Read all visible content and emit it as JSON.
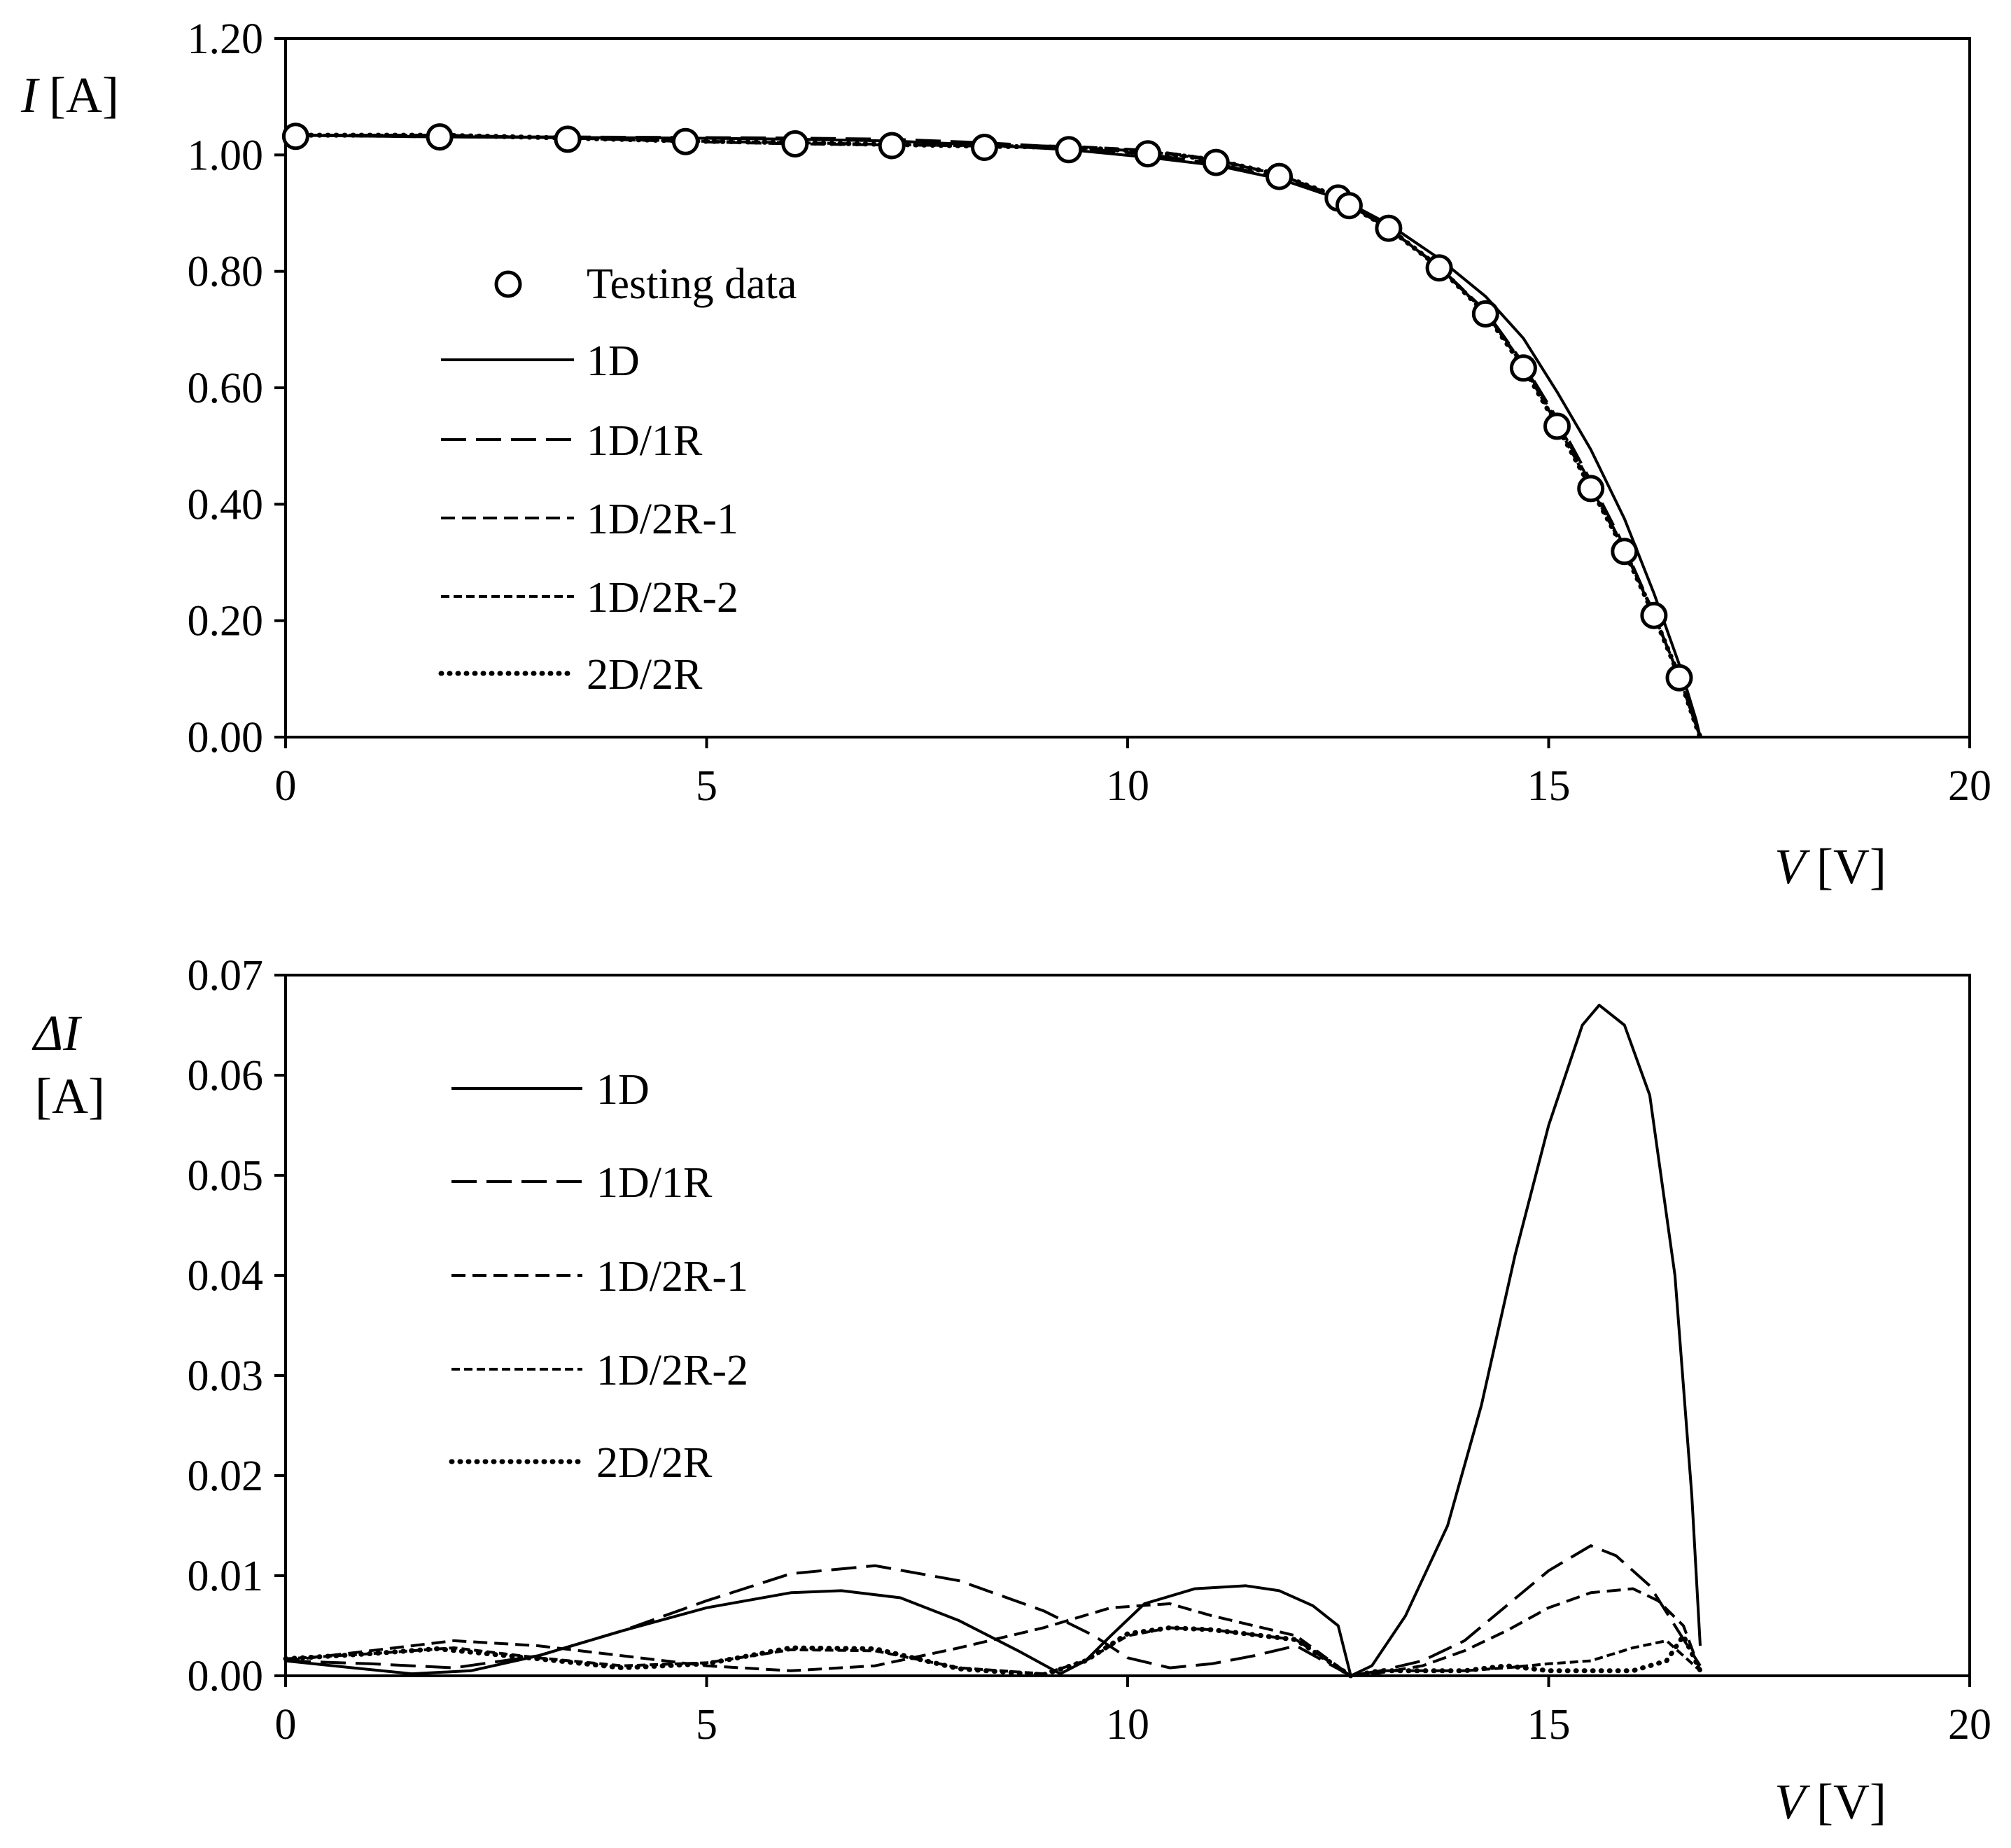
{
  "chart_data": [
    {
      "type": "line",
      "xlabel_var": "V",
      "xlabel_unit": "[V]",
      "ylabel_var": "I",
      "ylabel_unit": "[A]",
      "xlim": [
        0,
        20
      ],
      "ylim": [
        0,
        1.2
      ],
      "xticks": [
        "0",
        "5",
        "10",
        "15",
        "20"
      ],
      "yticks": [
        "0.00",
        "0.20",
        "0.40",
        "0.60",
        "0.80",
        "1.00",
        "1.20"
      ],
      "legend_position": "left",
      "legend": [
        "Testing data",
        "1D",
        "1D/1R",
        "1D/2R-1",
        "1D/2R-2",
        "2D/2R"
      ],
      "testing_data": {
        "name": "Testing data",
        "x": [
          0.12,
          1.83,
          3.35,
          4.75,
          6.05,
          7.2,
          8.3,
          9.3,
          10.24,
          11.05,
          11.8,
          12.5,
          12.63,
          13.1,
          13.7,
          14.25,
          14.7,
          15.1,
          15.5,
          15.9,
          16.25,
          16.55
        ],
        "y": [
          1.032,
          1.031,
          1.027,
          1.023,
          1.019,
          1.016,
          1.013,
          1.009,
          1.002,
          0.987,
          0.963,
          0.926,
          0.913,
          0.874,
          0.806,
          0.727,
          0.634,
          0.534,
          0.427,
          0.319,
          0.209,
          0.102
        ]
      },
      "series": [
        {
          "name": "1D",
          "x": [
            0.0,
            1.83,
            3.35,
            4.75,
            6.05,
            7.2,
            8.3,
            9.3,
            10.24,
            11.05,
            11.8,
            12.5,
            12.63,
            13.1,
            13.7,
            14.25,
            14.7,
            15.1,
            15.5,
            15.9,
            16.25,
            16.55,
            16.75,
            16.8
          ],
          "y": [
            1.034,
            1.031,
            1.03,
            1.029,
            1.027,
            1.024,
            1.017,
            1.009,
            0.996,
            0.982,
            0.959,
            0.925,
            0.917,
            0.881,
            0.822,
            0.757,
            0.685,
            0.593,
            0.494,
            0.375,
            0.247,
            0.125,
            0.03,
            0.0
          ]
        },
        {
          "name": "1D/1R",
          "x": [
            0.0,
            1.83,
            3.35,
            4.75,
            6.05,
            7.2,
            8.3,
            9.3,
            10.24,
            11.05,
            11.8,
            12.5,
            12.63,
            13.1,
            13.7,
            14.25,
            14.7,
            15.1,
            15.5,
            15.9,
            16.25,
            16.55,
            16.75,
            16.8
          ],
          "y": [
            1.034,
            1.031,
            1.031,
            1.03,
            1.029,
            1.027,
            1.021,
            1.013,
            1.001,
            0.985,
            0.961,
            0.924,
            0.915,
            0.874,
            0.808,
            0.732,
            0.642,
            0.547,
            0.44,
            0.327,
            0.212,
            0.104,
            0.02,
            0.0
          ]
        },
        {
          "name": "1D/2R-1",
          "x": [
            0.0,
            1.83,
            3.35,
            4.75,
            6.05,
            7.2,
            8.3,
            9.3,
            10.24,
            11.05,
            11.8,
            12.5,
            12.63,
            13.1,
            13.7,
            14.25,
            14.7,
            15.1,
            15.5,
            15.9,
            16.25,
            16.55,
            16.75,
            16.8
          ],
          "y": [
            1.034,
            1.034,
            1.029,
            1.023,
            1.019,
            1.017,
            1.016,
            1.015,
            1.008,
            0.992,
            0.966,
            0.927,
            0.913,
            0.874,
            0.807,
            0.73,
            0.64,
            0.542,
            0.435,
            0.323,
            0.211,
            0.104,
            0.02,
            0.0
          ]
        },
        {
          "name": "1D/2R-2",
          "x": [
            0.0,
            1.83,
            3.35,
            4.75,
            6.05,
            7.2,
            8.3,
            9.3,
            10.24,
            11.05,
            11.8,
            12.5,
            12.63,
            13.1,
            13.7,
            14.25,
            14.7,
            15.1,
            15.5,
            15.9,
            16.25,
            16.55,
            16.75,
            16.8
          ],
          "y": [
            1.034,
            1.034,
            1.029,
            1.024,
            1.021,
            1.018,
            1.015,
            1.013,
            1.006,
            0.991,
            0.966,
            0.928,
            0.914,
            0.874,
            0.807,
            0.729,
            0.637,
            0.537,
            0.429,
            0.321,
            0.21,
            0.104,
            0.02,
            0.0
          ]
        },
        {
          "name": "2D/2R",
          "x": [
            0.0,
            1.83,
            3.35,
            4.75,
            6.05,
            7.2,
            8.3,
            9.3,
            10.24,
            11.05,
            11.8,
            12.5,
            12.63,
            13.1,
            13.7,
            14.25,
            14.7,
            15.1,
            15.5,
            15.9,
            16.25,
            16.55,
            16.75,
            16.8
          ],
          "y": [
            1.034,
            1.034,
            1.029,
            1.024,
            1.021,
            1.018,
            1.015,
            1.013,
            1.006,
            0.991,
            0.966,
            0.928,
            0.914,
            0.874,
            0.807,
            0.728,
            0.635,
            0.535,
            0.428,
            0.32,
            0.209,
            0.104,
            0.02,
            0.0
          ]
        }
      ]
    },
    {
      "type": "line",
      "xlabel_var": "V",
      "xlabel_unit": "[V]",
      "ylabel_var": "ΔI",
      "ylabel_unit": "[A]",
      "xlim": [
        0,
        20
      ],
      "ylim": [
        0,
        0.07
      ],
      "xticks": [
        "0",
        "5",
        "10",
        "15",
        "20"
      ],
      "yticks": [
        "0.00",
        "0.01",
        "0.02",
        "0.03",
        "0.04",
        "0.05",
        "0.06",
        "0.07"
      ],
      "legend_position": "top-left",
      "legend": [
        "1D",
        "1D/1R",
        "1D/2R-1",
        "1D/2R-2",
        "2D/2R"
      ],
      "series": [
        {
          "name": "1D",
          "x": [
            0.0,
            0.8,
            1.5,
            2.2,
            3.0,
            4.0,
            5.0,
            6.0,
            6.6,
            7.3,
            8.0,
            8.7,
            9.2,
            9.5,
            9.8,
            10.2,
            10.8,
            11.4,
            11.8,
            12.2,
            12.5,
            12.65,
            12.9,
            13.3,
            13.8,
            14.2,
            14.6,
            15.0,
            15.4,
            15.6,
            15.9,
            16.2,
            16.5,
            16.7,
            16.8
          ],
          "y": [
            0.0015,
            0.0008,
            0.0002,
            0.0005,
            0.002,
            0.0045,
            0.0068,
            0.0083,
            0.0085,
            0.0078,
            0.0055,
            0.0025,
            0.0002,
            0.0015,
            0.004,
            0.0072,
            0.0087,
            0.009,
            0.0085,
            0.007,
            0.005,
            0.0,
            0.001,
            0.006,
            0.015,
            0.027,
            0.042,
            0.055,
            0.065,
            0.067,
            0.065,
            0.058,
            0.04,
            0.018,
            0.003
          ]
        },
        {
          "name": "1D/1R",
          "x": [
            0.0,
            1.0,
            2.0,
            3.0,
            4.0,
            5.0,
            6.0,
            7.0,
            8.0,
            9.0,
            9.6,
            10.0,
            10.5,
            11.0,
            11.5,
            12.0,
            12.65,
            13.0,
            13.5,
            14.0,
            14.5,
            15.0,
            15.5,
            15.8,
            16.2,
            16.5,
            16.8
          ],
          "y": [
            0.0015,
            0.0012,
            0.0008,
            0.002,
            0.0045,
            0.0075,
            0.0102,
            0.011,
            0.0095,
            0.0065,
            0.004,
            0.0018,
            0.0008,
            0.0012,
            0.002,
            0.003,
            0.0,
            0.0005,
            0.0015,
            0.0035,
            0.007,
            0.0105,
            0.013,
            0.012,
            0.009,
            0.005,
            0.001
          ]
        },
        {
          "name": "1D/2R-1",
          "x": [
            0.0,
            1.0,
            2.0,
            3.0,
            4.0,
            5.0,
            6.0,
            7.0,
            8.0,
            9.0,
            9.8,
            10.5,
            11.0,
            12.0,
            12.65,
            13.0,
            13.5,
            14.0,
            14.5,
            15.0,
            15.5,
            16.0,
            16.3,
            16.6,
            16.8
          ],
          "y": [
            0.0015,
            0.0025,
            0.0035,
            0.003,
            0.002,
            0.001,
            0.0005,
            0.001,
            0.0028,
            0.0048,
            0.0068,
            0.0072,
            0.006,
            0.004,
            0.0,
            0.0003,
            0.001,
            0.0025,
            0.0045,
            0.0068,
            0.0083,
            0.0087,
            0.0075,
            0.005,
            0.0005
          ]
        },
        {
          "name": "1D/2R-2",
          "x": [
            0.0,
            1.0,
            2.0,
            3.0,
            4.0,
            5.0,
            6.0,
            7.0,
            8.0,
            9.0,
            9.5,
            10.0,
            10.5,
            11.0,
            12.0,
            12.65,
            13.0,
            14.0,
            14.5,
            15.0,
            15.5,
            16.0,
            16.4,
            16.8
          ],
          "y": [
            0.0017,
            0.0022,
            0.0028,
            0.0018,
            0.001,
            0.0013,
            0.0026,
            0.0025,
            0.0008,
            0.0002,
            0.0015,
            0.004,
            0.0048,
            0.0046,
            0.0036,
            0.0,
            0.0005,
            0.0005,
            0.0008,
            0.0012,
            0.0015,
            0.0028,
            0.0035,
            0.0005
          ]
        },
        {
          "name": "2D/2R",
          "x": [
            0.0,
            1.0,
            1.8,
            3.0,
            4.0,
            5.0,
            6.0,
            7.0,
            8.0,
            9.0,
            9.5,
            10.0,
            10.5,
            11.0,
            12.0,
            12.65,
            13.0,
            14.0,
            14.5,
            15.0,
            15.5,
            16.0,
            16.4,
            16.6,
            16.8
          ],
          "y": [
            0.0017,
            0.0022,
            0.0027,
            0.0017,
            0.0008,
            0.0012,
            0.0028,
            0.0027,
            0.0007,
            0.0001,
            0.0015,
            0.0042,
            0.0048,
            0.0046,
            0.0036,
            0.0,
            0.0005,
            0.0005,
            0.001,
            0.0005,
            0.0005,
            0.0005,
            0.0015,
            0.004,
            0.0005
          ]
        }
      ]
    }
  ]
}
